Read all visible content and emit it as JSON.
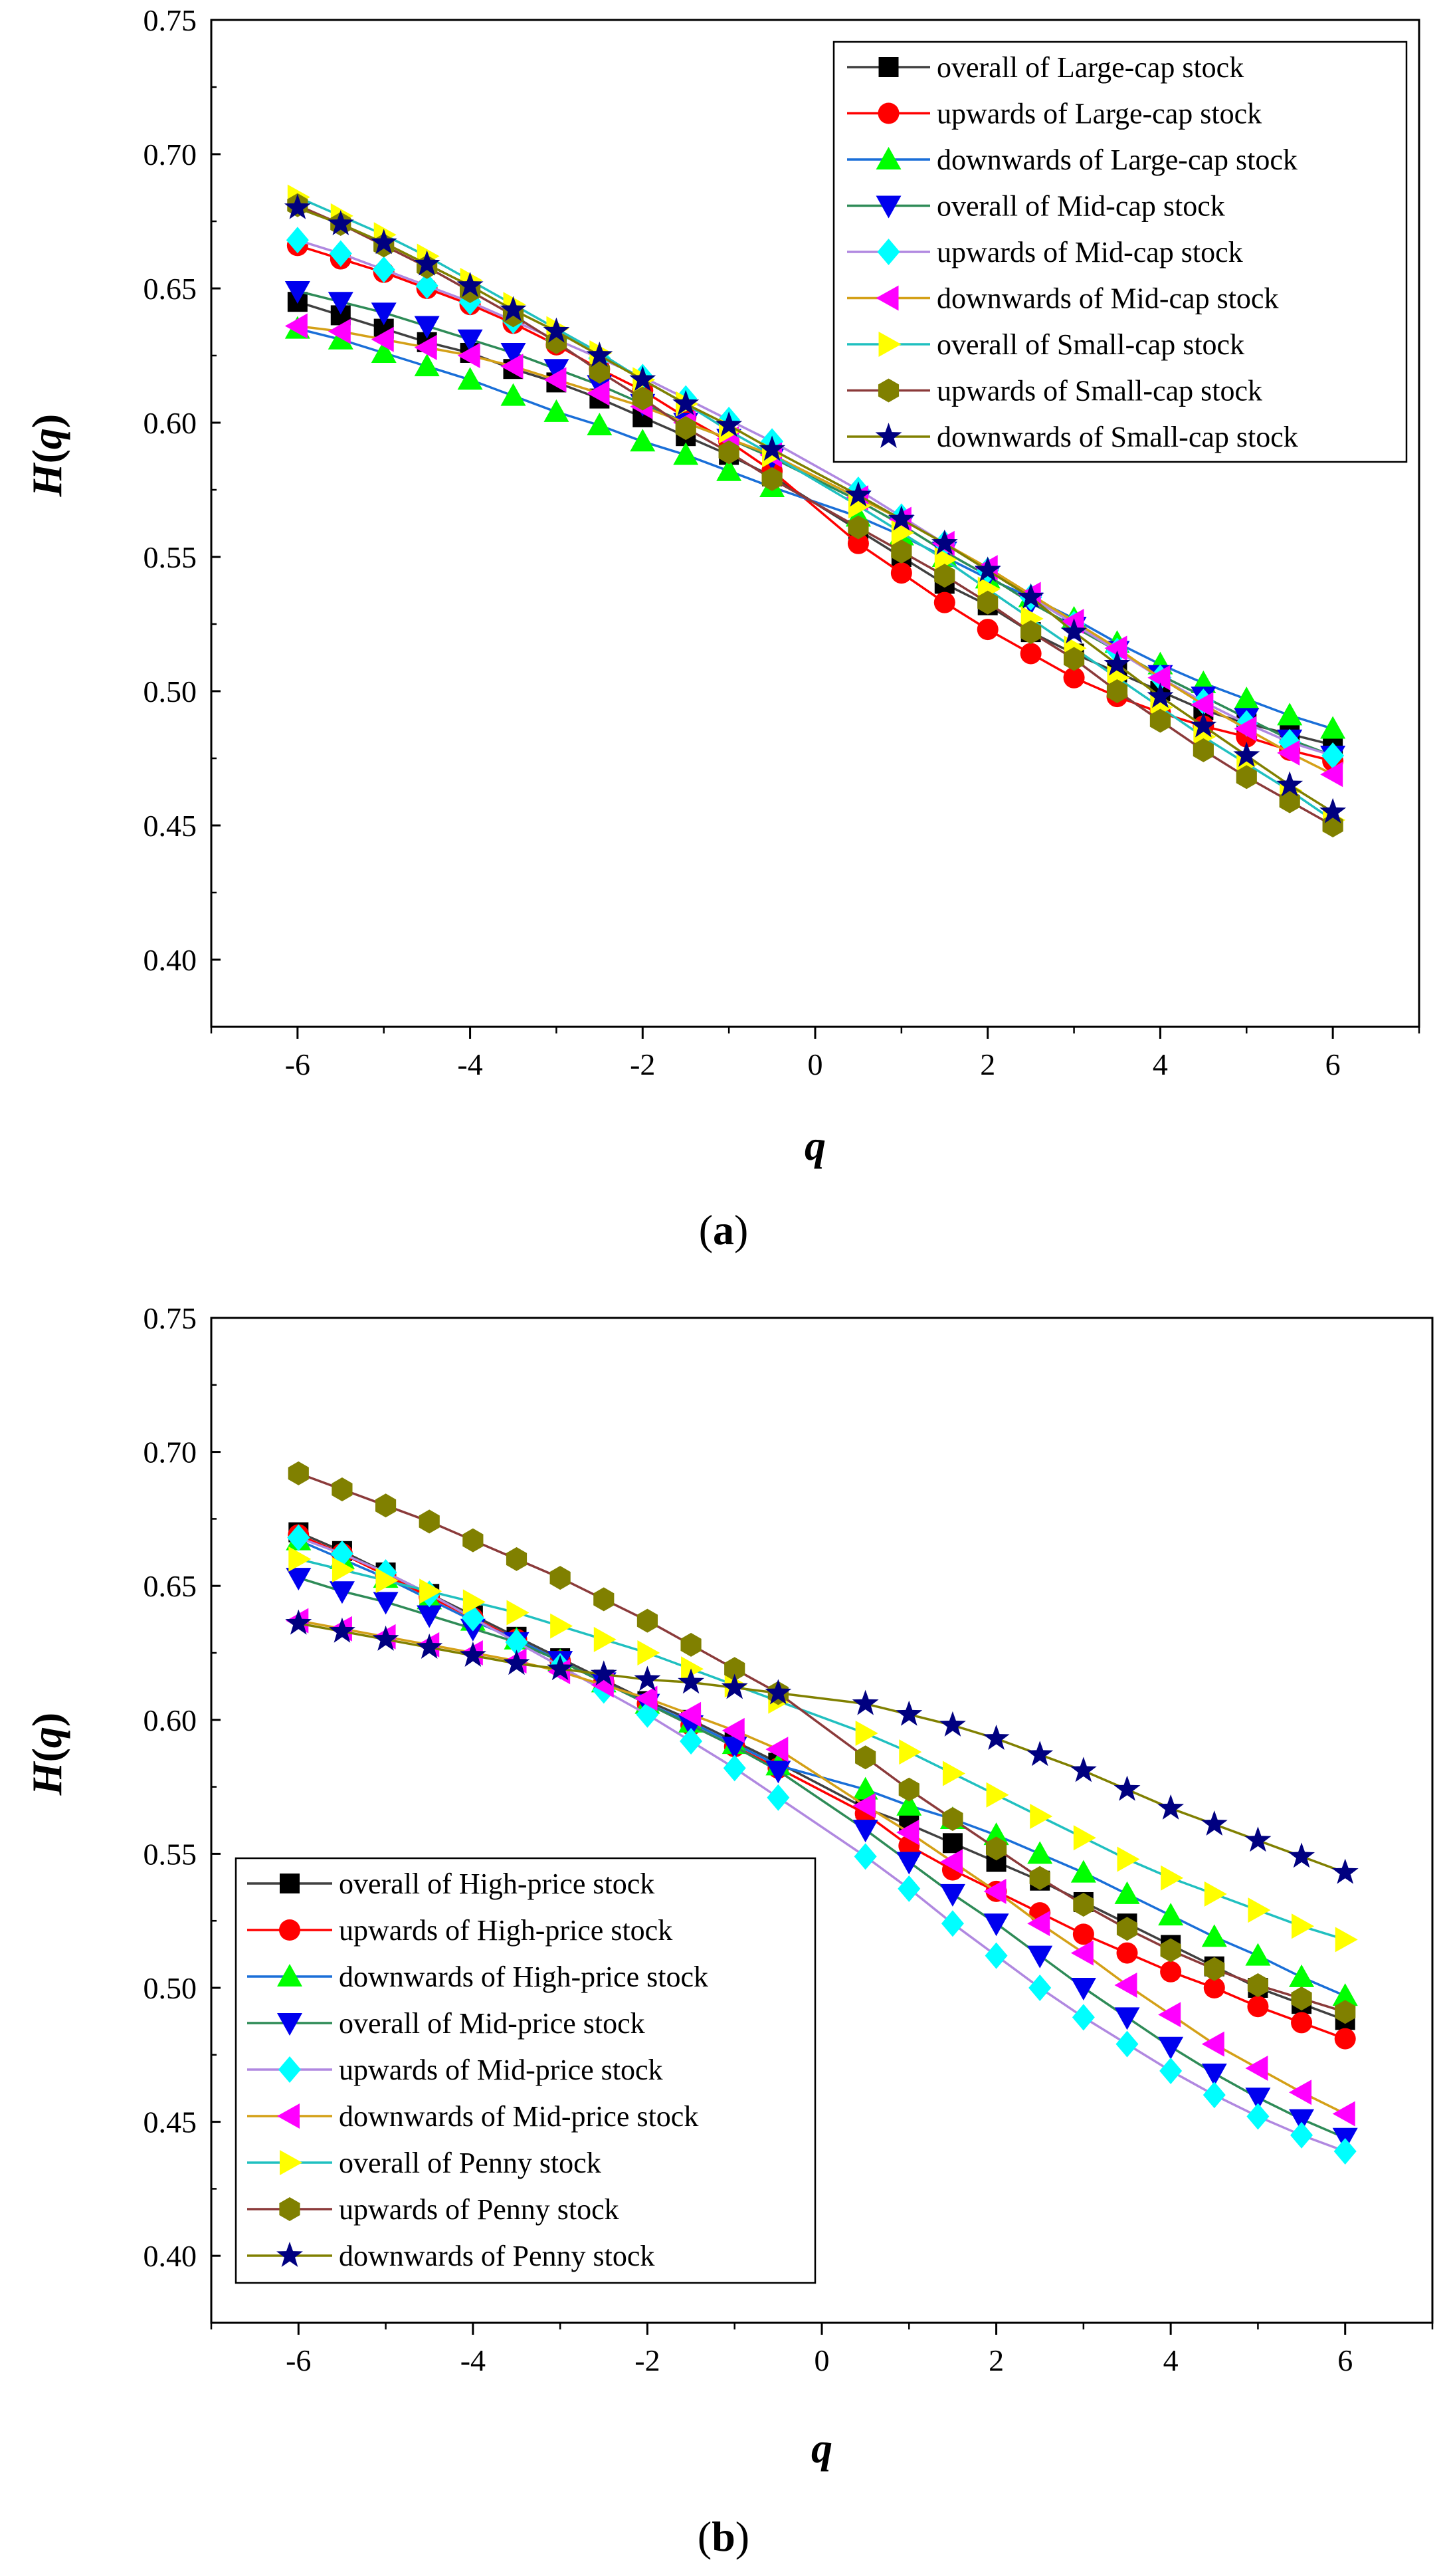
{
  "chart_data": [
    {
      "type": "line",
      "caption": "(a)",
      "caption_open": "(",
      "caption_letter": "a",
      "caption_close": ")",
      "xlabel": "q",
      "ylabel_main": "H",
      "ylabel_open": "(",
      "ylabel_var": "q",
      "ylabel_close": ")",
      "xlim": [
        -7,
        7
      ],
      "ylim": [
        0.375,
        0.75
      ],
      "xticks": [
        -6,
        -4,
        -2,
        0,
        2,
        4,
        6
      ],
      "xtick_labels": [
        "-6",
        "-4",
        "-2",
        "0",
        "2",
        "4",
        "6"
      ],
      "yticks": [
        0.4,
        0.45,
        0.5,
        0.55,
        0.6,
        0.65,
        0.7,
        0.75
      ],
      "ytick_labels": [
        "0.40",
        "0.45",
        "0.50",
        "0.55",
        "0.60",
        "0.65",
        "0.70",
        "0.75"
      ],
      "legend_position": "top-right",
      "x": [
        -6,
        -5.5,
        -5,
        -4.5,
        -4,
        -3.5,
        -3,
        -2.5,
        -2,
        -1.5,
        -1,
        -0.5,
        0.5,
        1,
        1.5,
        2,
        2.5,
        3,
        3.5,
        4,
        4.5,
        5,
        5.5,
        6
      ],
      "series": [
        {
          "name": "overall of Large-cap stock",
          "marker": "square",
          "color": "#000000",
          "line_color": "#404040",
          "values": [
            0.645,
            0.64,
            0.635,
            0.63,
            0.626,
            0.62,
            0.615,
            0.609,
            0.602,
            0.595,
            0.588,
            0.58,
            0.56,
            0.55,
            0.54,
            0.532,
            0.522,
            0.514,
            0.507,
            0.5,
            0.493,
            0.488,
            0.484,
            0.48
          ]
        },
        {
          "name": "upwards of Large-cap stock",
          "marker": "circle",
          "color": "#ff0000",
          "line_color": "#ff0000",
          "values": [
            0.666,
            0.661,
            0.656,
            0.65,
            0.644,
            0.637,
            0.629,
            0.62,
            0.612,
            0.602,
            0.593,
            0.582,
            0.555,
            0.544,
            0.533,
            0.523,
            0.514,
            0.505,
            0.498,
            0.492,
            0.487,
            0.483,
            0.478,
            0.474
          ]
        },
        {
          "name": "downwards of Large-cap stock",
          "marker": "triangle-up",
          "color": "#00ff00",
          "line_color": "#1a6fd8",
          "values": [
            0.635,
            0.631,
            0.626,
            0.621,
            0.616,
            0.61,
            0.604,
            0.599,
            0.593,
            0.588,
            0.582,
            0.576,
            0.565,
            0.558,
            0.55,
            0.542,
            0.535,
            0.527,
            0.518,
            0.51,
            0.503,
            0.497,
            0.491,
            0.486
          ]
        },
        {
          "name": "overall of Mid-cap stock",
          "marker": "triangle-down",
          "color": "#0000ee",
          "line_color": "#2e8b57",
          "values": [
            0.649,
            0.645,
            0.641,
            0.636,
            0.631,
            0.626,
            0.62,
            0.614,
            0.607,
            0.6,
            0.594,
            0.587,
            0.571,
            0.562,
            0.552,
            0.543,
            0.533,
            0.524,
            0.515,
            0.506,
            0.498,
            0.49,
            0.482,
            0.476
          ]
        },
        {
          "name": "upwards of Mid-cap stock",
          "marker": "diamond",
          "color": "#00ffff",
          "line_color": "#b088e0",
          "values": [
            0.668,
            0.663,
            0.657,
            0.651,
            0.645,
            0.638,
            0.631,
            0.624,
            0.617,
            0.609,
            0.601,
            0.593,
            0.575,
            0.565,
            0.555,
            0.545,
            0.535,
            0.525,
            0.515,
            0.505,
            0.496,
            0.488,
            0.481,
            0.476
          ]
        },
        {
          "name": "downwards of Mid-cap stock",
          "marker": "triangle-left",
          "color": "#ff00ff",
          "line_color": "#d4a017",
          "values": [
            0.636,
            0.634,
            0.631,
            0.628,
            0.625,
            0.621,
            0.616,
            0.611,
            0.606,
            0.6,
            0.594,
            0.588,
            0.572,
            0.564,
            0.555,
            0.546,
            0.536,
            0.526,
            0.516,
            0.505,
            0.495,
            0.486,
            0.477,
            0.469
          ]
        },
        {
          "name": "overall of Small-cap stock",
          "marker": "triangle-right",
          "color": "#ffff00",
          "line_color": "#20c0c0",
          "values": [
            0.684,
            0.677,
            0.67,
            0.662,
            0.653,
            0.644,
            0.635,
            0.626,
            0.616,
            0.607,
            0.597,
            0.588,
            0.569,
            0.559,
            0.549,
            0.538,
            0.527,
            0.516,
            0.505,
            0.494,
            0.483,
            0.473,
            0.463,
            0.452
          ]
        },
        {
          "name": "upwards of Small-cap stock",
          "marker": "hexagon",
          "color": "#808000",
          "line_color": "#8b3a3a",
          "values": [
            0.681,
            0.674,
            0.666,
            0.658,
            0.649,
            0.64,
            0.63,
            0.619,
            0.609,
            0.598,
            0.589,
            0.579,
            0.561,
            0.552,
            0.543,
            0.533,
            0.522,
            0.512,
            0.5,
            0.489,
            0.478,
            0.468,
            0.459,
            0.45
          ]
        },
        {
          "name": "downwards of Small-cap stock",
          "marker": "star",
          "color": "#000080",
          "line_color": "#808000",
          "values": [
            0.68,
            0.674,
            0.667,
            0.659,
            0.651,
            0.642,
            0.634,
            0.625,
            0.616,
            0.607,
            0.599,
            0.59,
            0.573,
            0.564,
            0.555,
            0.545,
            0.535,
            0.522,
            0.51,
            0.498,
            0.487,
            0.476,
            0.465,
            0.455
          ]
        }
      ]
    },
    {
      "type": "line",
      "caption": "(b)",
      "caption_open": "(",
      "caption_letter": "b",
      "caption_close": ")",
      "xlabel": "q",
      "ylabel_main": "H",
      "ylabel_open": "(",
      "ylabel_var": "q",
      "ylabel_close": ")",
      "xlim": [
        -7,
        7
      ],
      "ylim": [
        0.375,
        0.75
      ],
      "xticks": [
        -6,
        -4,
        -2,
        0,
        2,
        4,
        6
      ],
      "xtick_labels": [
        "-6",
        "-4",
        "-2",
        "0",
        "2",
        "4",
        "6"
      ],
      "yticks": [
        0.4,
        0.45,
        0.5,
        0.55,
        0.6,
        0.65,
        0.7,
        0.75
      ],
      "ytick_labels": [
        "0.40",
        "0.45",
        "0.50",
        "0.55",
        "0.60",
        "0.65",
        "0.70",
        "0.75"
      ],
      "legend_position": "bottom-left",
      "x": [
        -6,
        -5.5,
        -5,
        -4.5,
        -4,
        -3.5,
        -3,
        -2.5,
        -2,
        -1.5,
        -1,
        -0.5,
        0.5,
        1,
        1.5,
        2,
        2.5,
        3,
        3.5,
        4,
        4.5,
        5,
        5.5,
        6
      ],
      "series": [
        {
          "name": "overall of High-price stock",
          "marker": "square",
          "color": "#000000",
          "line_color": "#404040",
          "values": [
            0.67,
            0.663,
            0.655,
            0.647,
            0.639,
            0.631,
            0.623,
            0.615,
            0.607,
            0.6,
            0.592,
            0.584,
            0.567,
            0.561,
            0.554,
            0.547,
            0.54,
            0.532,
            0.524,
            0.516,
            0.508,
            0.5,
            0.494,
            0.488
          ]
        },
        {
          "name": "upwards of High-price stock",
          "marker": "circle",
          "color": "#ff0000",
          "line_color": "#ff0000",
          "values": [
            0.669,
            0.662,
            0.654,
            0.646,
            0.638,
            0.63,
            0.622,
            0.614,
            0.606,
            0.598,
            0.59,
            0.582,
            0.565,
            0.553,
            0.544,
            0.536,
            0.528,
            0.52,
            0.513,
            0.506,
            0.5,
            0.493,
            0.487,
            0.481
          ]
        },
        {
          "name": "downwards of High-price stock",
          "marker": "triangle-up",
          "color": "#00ff00",
          "line_color": "#1a6fd8",
          "values": [
            0.667,
            0.66,
            0.653,
            0.645,
            0.637,
            0.63,
            0.622,
            0.614,
            0.606,
            0.599,
            0.591,
            0.583,
            0.574,
            0.568,
            0.563,
            0.557,
            0.55,
            0.543,
            0.535,
            0.527,
            0.519,
            0.512,
            0.504,
            0.497
          ]
        },
        {
          "name": "overall of Mid-price stock",
          "marker": "triangle-down",
          "color": "#0000ee",
          "line_color": "#2e8b57",
          "values": [
            0.653,
            0.648,
            0.644,
            0.639,
            0.634,
            0.629,
            0.622,
            0.614,
            0.606,
            0.598,
            0.59,
            0.581,
            0.559,
            0.547,
            0.535,
            0.524,
            0.512,
            0.5,
            0.489,
            0.478,
            0.468,
            0.459,
            0.451,
            0.444
          ]
        },
        {
          "name": "upwards of Mid-price stock",
          "marker": "diamond",
          "color": "#00ffff",
          "line_color": "#b088e0",
          "values": [
            0.668,
            0.662,
            0.655,
            0.647,
            0.638,
            0.629,
            0.62,
            0.611,
            0.602,
            0.592,
            0.582,
            0.571,
            0.549,
            0.537,
            0.524,
            0.512,
            0.5,
            0.489,
            0.479,
            0.469,
            0.46,
            0.452,
            0.445,
            0.439
          ]
        },
        {
          "name": "downwards of Mid-price stock",
          "marker": "triangle-left",
          "color": "#ff00ff",
          "line_color": "#d4a017",
          "values": [
            0.637,
            0.634,
            0.631,
            0.628,
            0.625,
            0.622,
            0.618,
            0.613,
            0.608,
            0.602,
            0.596,
            0.589,
            0.568,
            0.558,
            0.547,
            0.536,
            0.524,
            0.513,
            0.501,
            0.49,
            0.479,
            0.47,
            0.461,
            0.453
          ]
        },
        {
          "name": "overall of Penny stock",
          "marker": "triangle-right",
          "color": "#ffff00",
          "line_color": "#20c0c0",
          "values": [
            0.66,
            0.656,
            0.652,
            0.648,
            0.644,
            0.64,
            0.635,
            0.63,
            0.625,
            0.619,
            0.613,
            0.607,
            0.595,
            0.588,
            0.58,
            0.572,
            0.564,
            0.556,
            0.548,
            0.541,
            0.535,
            0.529,
            0.523,
            0.518
          ]
        },
        {
          "name": "upwards of Penny stock",
          "marker": "hexagon",
          "color": "#808000",
          "line_color": "#8b3a3a",
          "values": [
            0.692,
            0.686,
            0.68,
            0.674,
            0.667,
            0.66,
            0.653,
            0.645,
            0.637,
            0.628,
            0.619,
            0.61,
            0.586,
            0.574,
            0.563,
            0.552,
            0.541,
            0.531,
            0.522,
            0.514,
            0.507,
            0.501,
            0.496,
            0.491
          ]
        },
        {
          "name": "downwards of Penny stock",
          "marker": "star",
          "color": "#000080",
          "line_color": "#808000",
          "values": [
            0.636,
            0.633,
            0.63,
            0.627,
            0.624,
            0.621,
            0.619,
            0.617,
            0.615,
            0.614,
            0.612,
            0.61,
            0.606,
            0.602,
            0.598,
            0.593,
            0.587,
            0.581,
            0.574,
            0.567,
            0.561,
            0.555,
            0.549,
            0.543
          ]
        }
      ]
    }
  ]
}
